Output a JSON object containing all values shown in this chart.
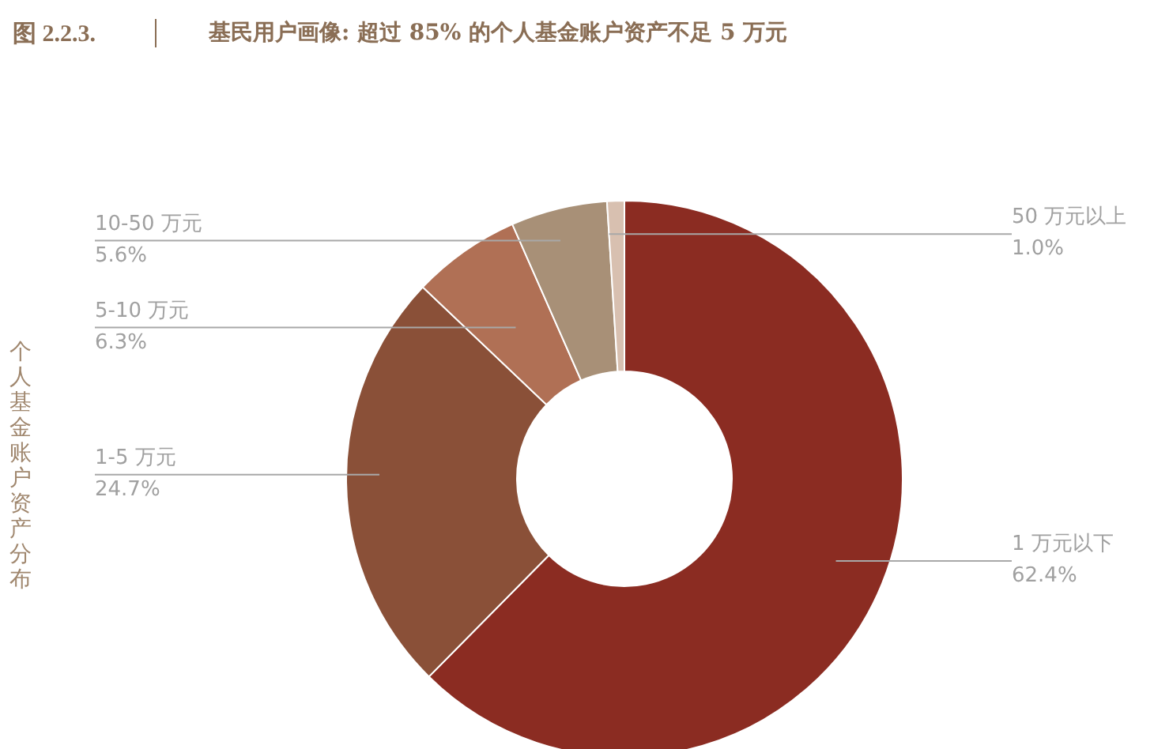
{
  "chart_data": {
    "type": "donut",
    "title": "基民用户画像: 超过 85% 的个人基金账户资产不足 5 万元",
    "annotations": [
      "图 2.2.3."
    ],
    "ylabel": "个人基金账户资产分布",
    "categories": [
      "1 万元以下",
      "1-5 万元",
      "5-10 万元",
      "10-50 万元",
      "50 万元以上"
    ],
    "values": [
      62.4,
      24.7,
      6.3,
      5.6,
      1.0
    ],
    "value_labels": [
      "62.4%",
      "24.7%",
      "6.3%",
      "5.6%",
      "1.0%"
    ],
    "colors": [
      "#8b2c22",
      "#8a5038",
      "#b07055",
      "#a89077",
      "#d8c0b0"
    ]
  }
}
